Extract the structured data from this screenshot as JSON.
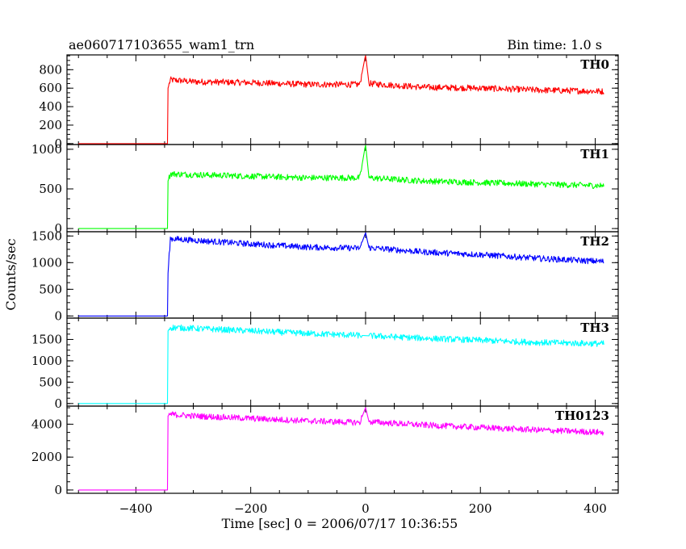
{
  "header": {
    "title": "ae060717103655_wam1_trn",
    "bin_time": "Bin time: 1.0 s"
  },
  "axes": {
    "ylabel": "Counts/sec",
    "xlabel": "Time [sec] 0 = 2006/07/17 10:36:55",
    "xlim": [
      -520,
      440
    ],
    "xticks": [
      -400,
      -200,
      0,
      200,
      400
    ],
    "xtick_labels": [
      "−400",
      "−200",
      "0",
      "200",
      "400"
    ]
  },
  "chart_data": [
    {
      "type": "line",
      "name": "TH0",
      "color": "#ff0000",
      "ylim": [
        -10,
        960
      ],
      "yticks": [
        0,
        200,
        400,
        600,
        800
      ],
      "points": [
        {
          "x": -500,
          "y": 0
        },
        {
          "x": -345,
          "y": 0
        },
        {
          "x": -344,
          "y": 600
        },
        {
          "x": -340,
          "y": 690
        },
        {
          "x": -300,
          "y": 670
        },
        {
          "x": -200,
          "y": 660
        },
        {
          "x": -100,
          "y": 640
        },
        {
          "x": -10,
          "y": 640
        },
        {
          "x": 0,
          "y": 960
        },
        {
          "x": 6,
          "y": 650
        },
        {
          "x": 100,
          "y": 610
        },
        {
          "x": 200,
          "y": 600
        },
        {
          "x": 300,
          "y": 580
        },
        {
          "x": 415,
          "y": 565
        }
      ]
    },
    {
      "type": "line",
      "name": "TH1",
      "color": "#00ff00",
      "ylim": [
        -40,
        1060
      ],
      "yticks": [
        0,
        500,
        1000
      ],
      "points": [
        {
          "x": -500,
          "y": 0
        },
        {
          "x": -345,
          "y": 0
        },
        {
          "x": -344,
          "y": 600
        },
        {
          "x": -340,
          "y": 690
        },
        {
          "x": -300,
          "y": 680
        },
        {
          "x": -200,
          "y": 660
        },
        {
          "x": -100,
          "y": 640
        },
        {
          "x": -10,
          "y": 640
        },
        {
          "x": 0,
          "y": 1060
        },
        {
          "x": 6,
          "y": 640
        },
        {
          "x": 100,
          "y": 600
        },
        {
          "x": 200,
          "y": 580
        },
        {
          "x": 300,
          "y": 560
        },
        {
          "x": 415,
          "y": 540
        }
      ]
    },
    {
      "type": "line",
      "name": "TH2",
      "color": "#0000ff",
      "ylim": [
        -40,
        1580
      ],
      "yticks": [
        0,
        500,
        1000,
        1500
      ],
      "points": [
        {
          "x": -500,
          "y": 0
        },
        {
          "x": -345,
          "y": 0
        },
        {
          "x": -344,
          "y": 800
        },
        {
          "x": -340,
          "y": 1450
        },
        {
          "x": -300,
          "y": 1420
        },
        {
          "x": -200,
          "y": 1350
        },
        {
          "x": -100,
          "y": 1290
        },
        {
          "x": -10,
          "y": 1270
        },
        {
          "x": 0,
          "y": 1560
        },
        {
          "x": 6,
          "y": 1280
        },
        {
          "x": 100,
          "y": 1200
        },
        {
          "x": 200,
          "y": 1150
        },
        {
          "x": 300,
          "y": 1080
        },
        {
          "x": 415,
          "y": 1020
        }
      ]
    },
    {
      "type": "line",
      "name": "TH3",
      "color": "#00ffff",
      "ylim": [
        -60,
        2000
      ],
      "yticks": [
        0,
        500,
        1000,
        1500
      ],
      "points": [
        {
          "x": -500,
          "y": 0
        },
        {
          "x": -345,
          "y": 0
        },
        {
          "x": -344,
          "y": 1700
        },
        {
          "x": -340,
          "y": 1780
        },
        {
          "x": -300,
          "y": 1760
        },
        {
          "x": -200,
          "y": 1700
        },
        {
          "x": -100,
          "y": 1640
        },
        {
          "x": 0,
          "y": 1590
        },
        {
          "x": 100,
          "y": 1530
        },
        {
          "x": 200,
          "y": 1480
        },
        {
          "x": 300,
          "y": 1430
        },
        {
          "x": 415,
          "y": 1400
        }
      ]
    },
    {
      "type": "line",
      "name": "TH0123",
      "color": "#ff00ff",
      "ylim": [
        -200,
        5100
      ],
      "yticks": [
        0,
        2000,
        4000
      ],
      "points": [
        {
          "x": -500,
          "y": 0
        },
        {
          "x": -345,
          "y": 0
        },
        {
          "x": -344,
          "y": 4500
        },
        {
          "x": -340,
          "y": 4600
        },
        {
          "x": -300,
          "y": 4500
        },
        {
          "x": -200,
          "y": 4350
        },
        {
          "x": -100,
          "y": 4200
        },
        {
          "x": -10,
          "y": 4100
        },
        {
          "x": 0,
          "y": 5000
        },
        {
          "x": 6,
          "y": 4150
        },
        {
          "x": 100,
          "y": 3950
        },
        {
          "x": 200,
          "y": 3800
        },
        {
          "x": 300,
          "y": 3650
        },
        {
          "x": 415,
          "y": 3500
        }
      ]
    }
  ]
}
